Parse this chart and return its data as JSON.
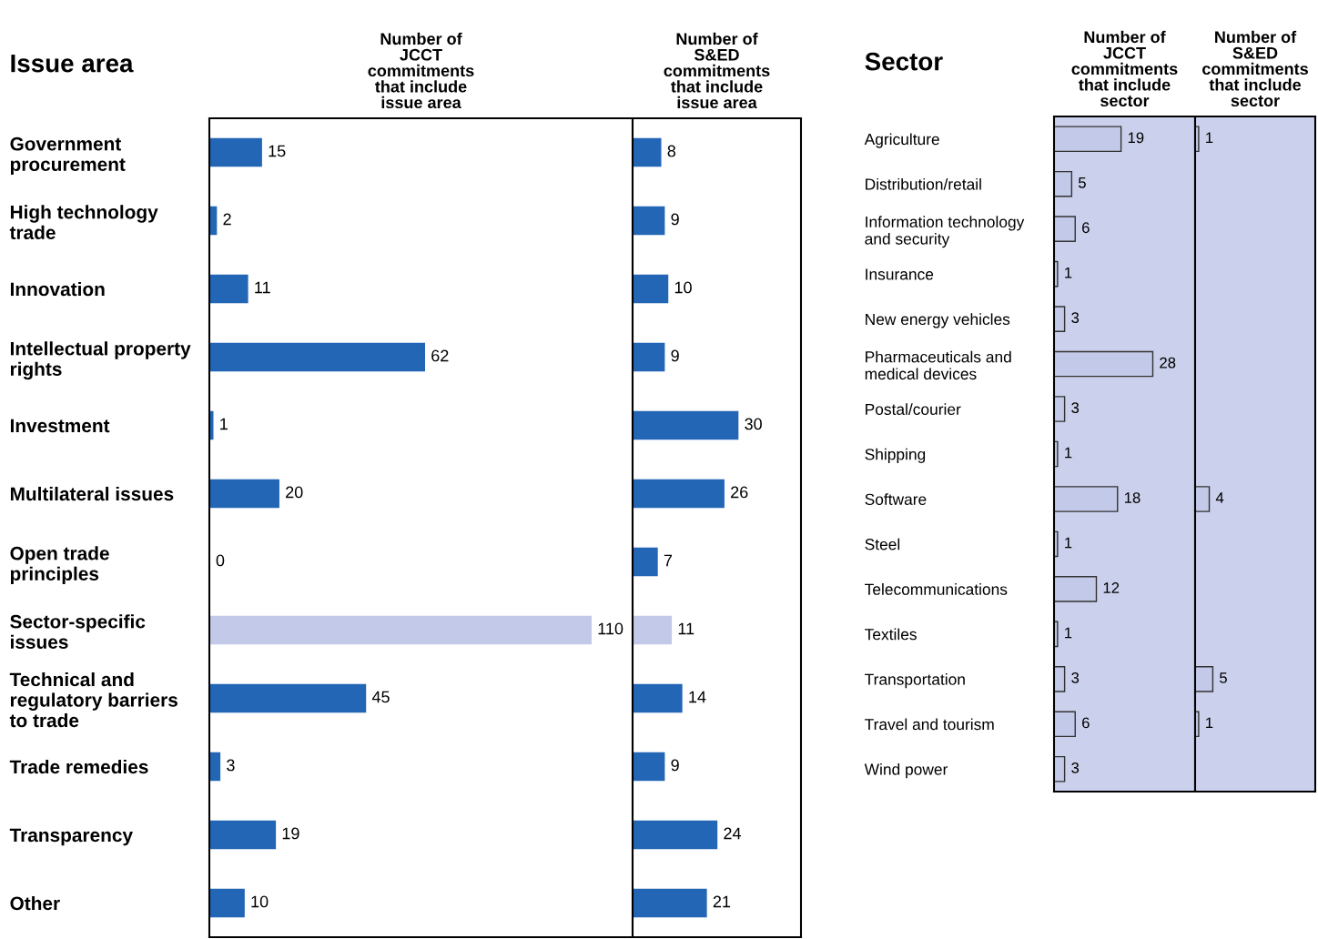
{
  "chart_data": [
    {
      "type": "bar",
      "orientation": "horizontal",
      "ylabel": "Issue area",
      "xlabel": "Number of\nJCCT\ncommitments\nthat include\nissue area",
      "categories": [
        "Government\nprocurement",
        "High technology\ntrade",
        "Innovation",
        "Intellectual property\nrights",
        "Investment",
        "Multilateral issues",
        "Open trade\nprinciples",
        "Sector-specific\nissues",
        "Technical and\nregulatory barriers\nto trade",
        "Trade remedies",
        "Transparency",
        "Other"
      ],
      "values": [
        15,
        2,
        11,
        62,
        1,
        20,
        0,
        110,
        45,
        3,
        19,
        10
      ],
      "colors": [
        "#2366b5",
        "#2366b5",
        "#2366b5",
        "#2366b5",
        "#2366b5",
        "#2366b5",
        "#2366b5",
        "#c3c9e9",
        "#2366b5",
        "#2366b5",
        "#2366b5",
        "#2366b5"
      ],
      "data_labels": true,
      "xlim": [
        0,
        122
      ],
      "tick_labels": "y"
    },
    {
      "type": "bar",
      "orientation": "horizontal",
      "xlabel": "Number of\nS&ED\ncommitments\nthat include\nissue area",
      "values": [
        8,
        9,
        10,
        9,
        30,
        26,
        7,
        11,
        14,
        9,
        24,
        21
      ],
      "colors": [
        "#2366b5",
        "#2366b5",
        "#2366b5",
        "#2366b5",
        "#2366b5",
        "#2366b5",
        "#2366b5",
        "#c3c9e9",
        "#2366b5",
        "#2366b5",
        "#2366b5",
        "#2366b5"
      ],
      "data_labels": true,
      "xlim": [
        0,
        48
      ],
      "tick_labels": false
    },
    {
      "type": "bar",
      "orientation": "horizontal",
      "ylabel": "Sector",
      "xlabel": "Number of\nJCCT\ncommitments\nthat include\nsector",
      "categories": [
        "Agriculture",
        "Distribution/retail",
        "Information technology\nand security",
        "Insurance",
        "New energy vehicles",
        "Pharmaceuticals and\nmedical devices",
        "Postal/courier",
        "Shipping",
        "Software",
        "Steel",
        "Telecommunications",
        "Textiles",
        "Transportation",
        "Travel and tourism",
        "Wind power"
      ],
      "values": [
        19,
        5,
        6,
        1,
        3,
        28,
        3,
        1,
        18,
        1,
        12,
        1,
        3,
        6,
        3
      ],
      "color": "#c3c9e9",
      "data_labels": true,
      "xlim": [
        0,
        40
      ],
      "tick_labels": "y"
    },
    {
      "type": "bar",
      "orientation": "horizontal",
      "xlabel": "Number of\nS&ED\ncommitments\nthat include\nsector",
      "values": [
        1,
        null,
        null,
        null,
        null,
        null,
        null,
        null,
        4,
        null,
        null,
        null,
        5,
        1,
        null
      ],
      "color": "#c3c9e9",
      "data_labels": true,
      "xlim": [
        0,
        34
      ],
      "tick_labels": false
    }
  ]
}
